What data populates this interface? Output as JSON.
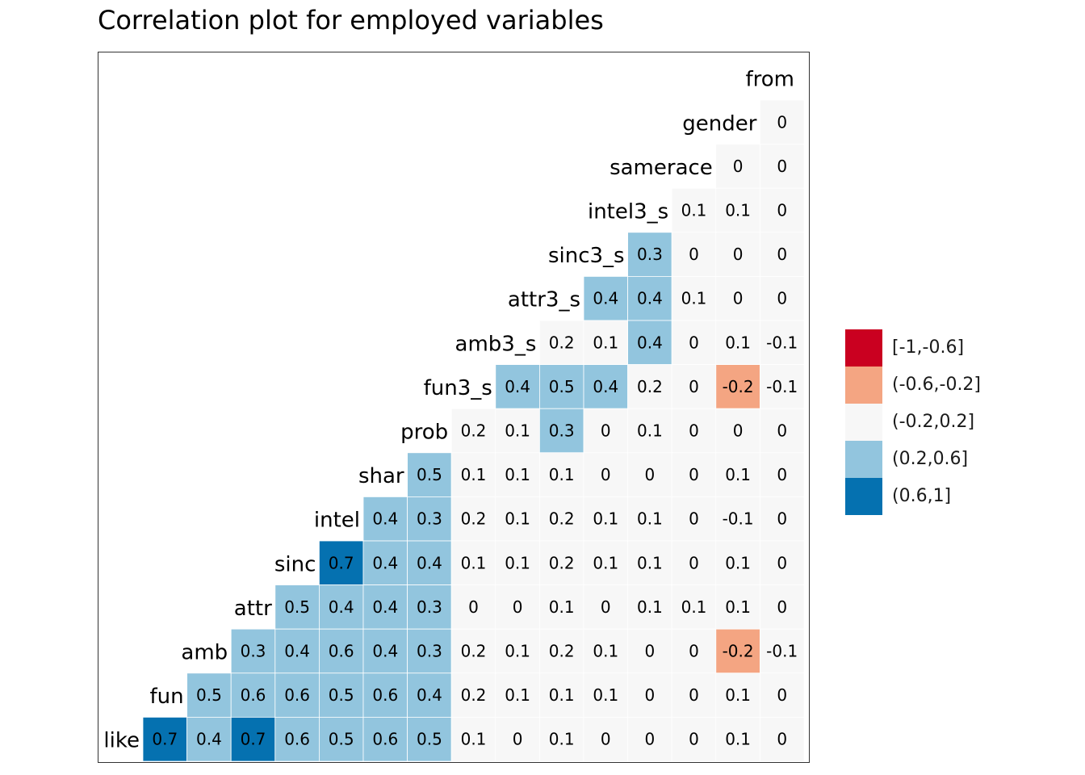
{
  "chart_data": {
    "type": "heatmap",
    "title": "Correlation plot for employed variables",
    "variables": [
      "like",
      "fun",
      "amb",
      "attr",
      "sinc",
      "intel",
      "shar",
      "prob",
      "fun3_s",
      "amb3_s",
      "attr3_s",
      "sinc3_s",
      "intel3_s",
      "samerace",
      "gender",
      "from"
    ],
    "rows": [
      {
        "label": "gender",
        "values": [
          0
        ]
      },
      {
        "label": "samerace",
        "values": [
          0,
          0
        ]
      },
      {
        "label": "intel3_s",
        "values": [
          0.1,
          0.1,
          0
        ]
      },
      {
        "label": "sinc3_s",
        "values": [
          0.3,
          0,
          0,
          0
        ]
      },
      {
        "label": "attr3_s",
        "values": [
          0.4,
          0.4,
          0.1,
          0,
          0
        ]
      },
      {
        "label": "amb3_s",
        "values": [
          0.2,
          0.1,
          0.4,
          0,
          0.1,
          -0.1
        ]
      },
      {
        "label": "fun3_s",
        "values": [
          0.4,
          0.5,
          0.4,
          0.2,
          0,
          -0.2,
          -0.1
        ]
      },
      {
        "label": "prob",
        "values": [
          0.2,
          0.1,
          0.3,
          0,
          0.1,
          0,
          0,
          0
        ]
      },
      {
        "label": "shar",
        "values": [
          0.5,
          0.1,
          0.1,
          0.1,
          0,
          0,
          0,
          0.1,
          0
        ]
      },
      {
        "label": "intel",
        "values": [
          0.4,
          0.3,
          0.2,
          0.1,
          0.2,
          0.1,
          0.1,
          0,
          -0.1,
          0
        ]
      },
      {
        "label": "sinc",
        "values": [
          0.7,
          0.4,
          0.4,
          0.1,
          0.1,
          0.2,
          0.1,
          0.1,
          0,
          0.1,
          0
        ]
      },
      {
        "label": "attr",
        "values": [
          0.5,
          0.4,
          0.4,
          0.3,
          0,
          0,
          0.1,
          0,
          0.1,
          0.1,
          0.1,
          0
        ]
      },
      {
        "label": "amb",
        "values": [
          0.3,
          0.4,
          0.6,
          0.4,
          0.3,
          0.2,
          0.1,
          0.2,
          0.1,
          0,
          0,
          -0.2,
          -0.1
        ]
      },
      {
        "label": "fun",
        "values": [
          0.5,
          0.6,
          0.6,
          0.5,
          0.6,
          0.4,
          0.2,
          0.1,
          0.1,
          0.1,
          0,
          0,
          0.1,
          0
        ]
      },
      {
        "label": "like",
        "values": [
          0.7,
          0.4,
          0.7,
          0.6,
          0.5,
          0.6,
          0.5,
          0.1,
          0,
          0.1,
          0,
          0,
          0,
          0.1,
          0
        ]
      }
    ],
    "legend": {
      "position": "right",
      "bins": [
        {
          "label": "[-1,-0.6]",
          "color": "#ca0020"
        },
        {
          "label": "(-0.6,-0.2]",
          "color": "#f4a582"
        },
        {
          "label": "(-0.2,0.2]",
          "color": "#f7f7f7"
        },
        {
          "label": "(0.2,0.6]",
          "color": "#92c5de"
        },
        {
          "label": "(0.6,1]",
          "color": "#0571b0"
        }
      ]
    }
  }
}
